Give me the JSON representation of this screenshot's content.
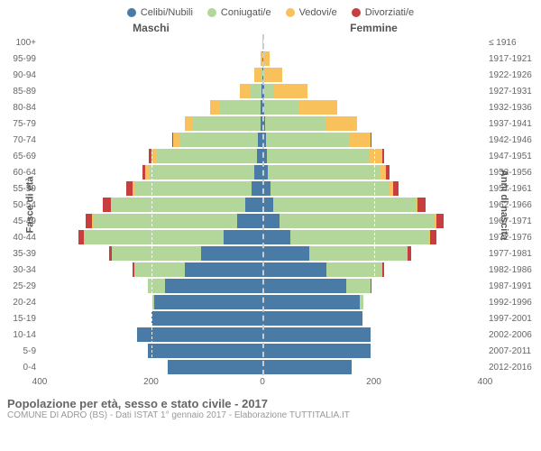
{
  "legend": [
    {
      "label": "Celibi/Nubili",
      "color": "#4a7ba6"
    },
    {
      "label": "Coniugati/e",
      "color": "#b3d69b"
    },
    {
      "label": "Vedovi/e",
      "color": "#f8c15c"
    },
    {
      "label": "Divorziati/e",
      "color": "#c73e3e"
    }
  ],
  "column_header_male": "Maschi",
  "column_header_female": "Femmine",
  "y_axis_left_title": "Fasce di età",
  "y_axis_right_title": "Anni di nascita",
  "age_bands": [
    "100+",
    "95-99",
    "90-94",
    "85-89",
    "80-84",
    "75-79",
    "70-74",
    "65-69",
    "60-64",
    "55-59",
    "50-54",
    "45-49",
    "40-44",
    "35-39",
    "30-34",
    "25-29",
    "20-24",
    "15-19",
    "10-14",
    "5-9",
    "0-4"
  ],
  "birth_years": [
    "≤ 1916",
    "1917-1921",
    "1922-1926",
    "1927-1931",
    "1932-1936",
    "1937-1941",
    "1942-1946",
    "1947-1951",
    "1952-1956",
    "1957-1961",
    "1962-1966",
    "1967-1971",
    "1972-1976",
    "1977-1981",
    "1982-1986",
    "1987-1991",
    "1992-1996",
    "1997-2001",
    "2002-2006",
    "2007-2011",
    "2012-2016"
  ],
  "x_max": 400,
  "x_ticks": [
    400,
    200,
    0,
    200,
    400
  ],
  "grid_at": [
    200
  ],
  "colors": {
    "single": "#4a7ba6",
    "married": "#b3d69b",
    "widowed": "#f8c15c",
    "divorced": "#c73e3e",
    "background": "#ffffff",
    "center_line": "#cccccc",
    "text": "#666666"
  },
  "data": {
    "male": [
      {
        "single": 0,
        "married": 0,
        "widowed": 0,
        "divorced": 0
      },
      {
        "single": 0,
        "married": 0,
        "widowed": 3,
        "divorced": 0
      },
      {
        "single": 0,
        "married": 3,
        "widowed": 12,
        "divorced": 0
      },
      {
        "single": 2,
        "married": 20,
        "widowed": 18,
        "divorced": 0
      },
      {
        "single": 4,
        "married": 72,
        "widowed": 18,
        "divorced": 0
      },
      {
        "single": 4,
        "married": 120,
        "widowed": 15,
        "divorced": 0
      },
      {
        "single": 8,
        "married": 140,
        "widowed": 12,
        "divorced": 2
      },
      {
        "single": 10,
        "married": 180,
        "widowed": 10,
        "divorced": 4
      },
      {
        "single": 14,
        "married": 190,
        "widowed": 6,
        "divorced": 6
      },
      {
        "single": 20,
        "married": 210,
        "widowed": 4,
        "divorced": 10
      },
      {
        "single": 30,
        "married": 240,
        "widowed": 2,
        "divorced": 14
      },
      {
        "single": 45,
        "married": 260,
        "widowed": 1,
        "divorced": 12
      },
      {
        "single": 70,
        "married": 250,
        "widowed": 0,
        "divorced": 10
      },
      {
        "single": 110,
        "married": 160,
        "widowed": 0,
        "divorced": 6
      },
      {
        "single": 140,
        "married": 90,
        "widowed": 0,
        "divorced": 3
      },
      {
        "single": 175,
        "married": 30,
        "widowed": 0,
        "divorced": 0
      },
      {
        "single": 195,
        "married": 3,
        "widowed": 0,
        "divorced": 0
      },
      {
        "single": 200,
        "married": 0,
        "widowed": 0,
        "divorced": 0
      },
      {
        "single": 225,
        "married": 0,
        "widowed": 0,
        "divorced": 0
      },
      {
        "single": 205,
        "married": 0,
        "widowed": 0,
        "divorced": 0
      },
      {
        "single": 170,
        "married": 0,
        "widowed": 0,
        "divorced": 0
      }
    ],
    "female": [
      {
        "single": 0,
        "married": 0,
        "widowed": 2,
        "divorced": 0
      },
      {
        "single": 1,
        "married": 0,
        "widowed": 12,
        "divorced": 0
      },
      {
        "single": 2,
        "married": 2,
        "widowed": 32,
        "divorced": 0
      },
      {
        "single": 3,
        "married": 18,
        "widowed": 60,
        "divorced": 0
      },
      {
        "single": 4,
        "married": 60,
        "widowed": 70,
        "divorced": 0
      },
      {
        "single": 5,
        "married": 110,
        "widowed": 55,
        "divorced": 0
      },
      {
        "single": 6,
        "married": 150,
        "widowed": 38,
        "divorced": 2
      },
      {
        "single": 8,
        "married": 185,
        "widowed": 22,
        "divorced": 4
      },
      {
        "single": 10,
        "married": 200,
        "widowed": 12,
        "divorced": 6
      },
      {
        "single": 14,
        "married": 215,
        "widowed": 6,
        "divorced": 10
      },
      {
        "single": 20,
        "married": 255,
        "widowed": 4,
        "divorced": 14
      },
      {
        "single": 30,
        "married": 280,
        "widowed": 2,
        "divorced": 14
      },
      {
        "single": 50,
        "married": 250,
        "widowed": 1,
        "divorced": 12
      },
      {
        "single": 85,
        "married": 175,
        "widowed": 0,
        "divorced": 8
      },
      {
        "single": 115,
        "married": 100,
        "widowed": 0,
        "divorced": 4
      },
      {
        "single": 150,
        "married": 45,
        "widowed": 0,
        "divorced": 1
      },
      {
        "single": 175,
        "married": 7,
        "widowed": 0,
        "divorced": 0
      },
      {
        "single": 180,
        "married": 0,
        "widowed": 0,
        "divorced": 0
      },
      {
        "single": 195,
        "married": 0,
        "widowed": 0,
        "divorced": 0
      },
      {
        "single": 195,
        "married": 0,
        "widowed": 0,
        "divorced": 0
      },
      {
        "single": 160,
        "married": 0,
        "widowed": 0,
        "divorced": 0
      }
    ]
  },
  "footer_title": "Popolazione per età, sesso e stato civile - 2017",
  "footer_sub": "COMUNE DI ADRO (BS) - Dati ISTAT 1° gennaio 2017 - Elaborazione TUTTITALIA.IT"
}
